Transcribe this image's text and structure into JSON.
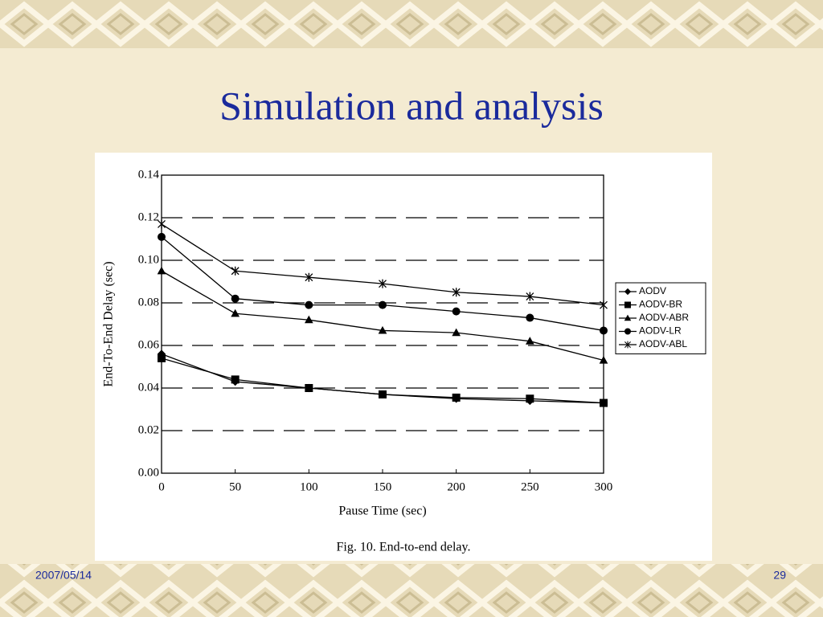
{
  "slide": {
    "title": "Simulation and analysis",
    "date": "2007/05/14",
    "page": "29"
  },
  "chart_data": {
    "type": "line",
    "x_label": "Pause Time (sec)",
    "y_label": "End-To-End Delay (sec)",
    "caption": "Fig. 10.  End-to-end delay.",
    "x": [
      0,
      50,
      100,
      150,
      200,
      250,
      300
    ],
    "series": [
      {
        "name": "AODV",
        "color": "#000000",
        "marker": "diamond",
        "values": [
          0.056,
          0.043,
          0.04,
          0.037,
          0.035,
          0.034,
          0.033
        ]
      },
      {
        "name": "AODV-BR",
        "color": "#000000",
        "marker": "square",
        "values": [
          0.054,
          0.044,
          0.04,
          0.037,
          0.0355,
          0.035,
          0.033
        ]
      },
      {
        "name": "AODV-ABR",
        "color": "#000000",
        "marker": "triangle",
        "values": [
          0.095,
          0.075,
          0.072,
          0.067,
          0.066,
          0.062,
          0.053
        ]
      },
      {
        "name": "AODV-LR",
        "color": "#000000",
        "marker": "circle",
        "values": [
          0.111,
          0.082,
          0.079,
          0.079,
          0.076,
          0.073,
          0.067
        ]
      },
      {
        "name": "AODV-ABL",
        "color": "#000000",
        "marker": "star",
        "values": [
          0.117,
          0.095,
          0.092,
          0.089,
          0.085,
          0.083,
          0.079
        ]
      }
    ],
    "xlim": [
      0,
      300
    ],
    "xticks": [
      0,
      50,
      100,
      150,
      200,
      250,
      300
    ],
    "ylim": [
      0,
      0.14
    ],
    "yticks": [
      {
        "value": 0,
        "label": "0.00"
      },
      {
        "value": 0.02,
        "label": "0.02"
      },
      {
        "value": 0.04,
        "label": "0.04"
      },
      {
        "value": 0.06,
        "label": "0.06"
      },
      {
        "value": 0.08,
        "label": "0.08"
      },
      {
        "value": 0.1,
        "label": "0.10"
      },
      {
        "value": 0.12,
        "label": "0.12"
      },
      {
        "value": 0.14,
        "label": "0.14"
      }
    ],
    "grid": true,
    "grid_style": "dashed",
    "legend": "right"
  }
}
